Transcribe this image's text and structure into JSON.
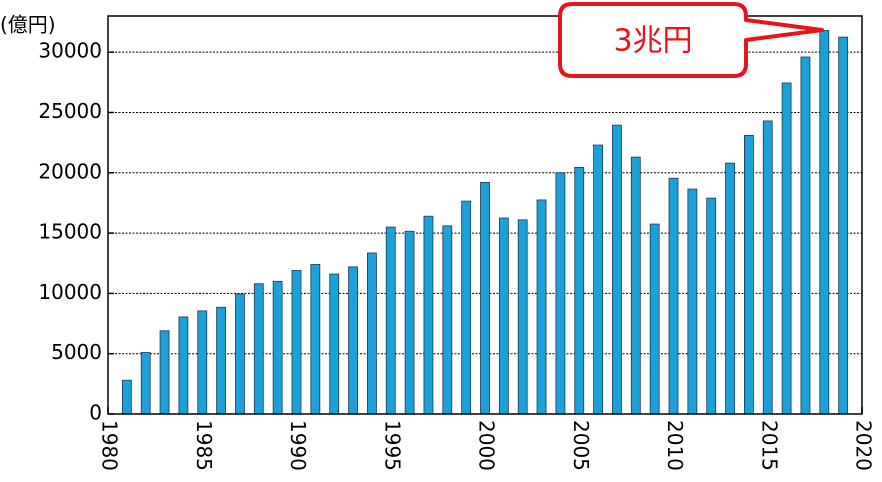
{
  "chart_data": {
    "type": "bar",
    "y_unit_label": "(億円)",
    "annotation": "3兆円",
    "x": [
      1981,
      1982,
      1983,
      1984,
      1985,
      1986,
      1987,
      1988,
      1989,
      1990,
      1991,
      1992,
      1993,
      1994,
      1995,
      1996,
      1997,
      1998,
      1999,
      2000,
      2001,
      2002,
      2003,
      2004,
      2005,
      2006,
      2007,
      2008,
      2009,
      2010,
      2011,
      2012,
      2013,
      2014,
      2015,
      2016,
      2017,
      2018,
      2019
    ],
    "values": [
      2800,
      5100,
      6900,
      8050,
      8550,
      8850,
      9950,
      10800,
      11000,
      11900,
      12400,
      11600,
      12200,
      13350,
      15500,
      15150,
      16400,
      15600,
      17650,
      19200,
      16250,
      16100,
      17750,
      20000,
      20450,
      22300,
      23950,
      21300,
      15750,
      19550,
      18650,
      17900,
      20800,
      23100,
      24300,
      27450,
      29600,
      31800,
      31250
    ],
    "color": "#1ca0d8",
    "xlim": [
      1980,
      2020
    ],
    "xticks": [
      1980,
      1985,
      1990,
      1995,
      2000,
      2005,
      2010,
      2015,
      2020
    ],
    "ylim": [
      0,
      33000
    ],
    "yticks": [
      0,
      5000,
      10000,
      15000,
      20000,
      25000,
      30000
    ],
    "grid": true
  }
}
